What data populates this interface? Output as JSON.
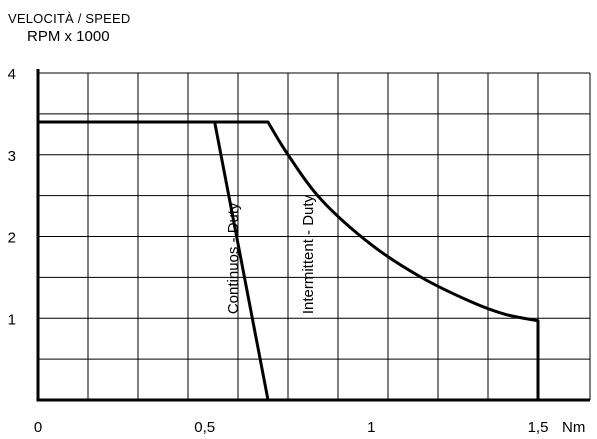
{
  "chart_data": {
    "type": "line",
    "ylabel_line1": "VELOCITÀ / SPEED",
    "ylabel_line2": "RPM x 1000",
    "xunit": "Nm",
    "xlim": [
      0,
      1.5
    ],
    "ylim": [
      0,
      4
    ],
    "x_ticks": [
      {
        "value": 0,
        "label": "0"
      },
      {
        "value": 0.5,
        "label": "0,5"
      },
      {
        "value": 1,
        "label": "1"
      },
      {
        "value": 1.5,
        "label": "1,5"
      }
    ],
    "y_ticks": [
      {
        "value": 0,
        "label": ""
      },
      {
        "value": 1,
        "label": "1"
      },
      {
        "value": 2,
        "label": "2"
      },
      {
        "value": 3,
        "label": "3"
      },
      {
        "value": 4,
        "label": "4"
      }
    ],
    "grid": true,
    "series": [
      {
        "name": "Continuos - Duty",
        "label_at": {
          "x": 0.6,
          "y": 1.05
        },
        "x": [
          0,
          0.53,
          0.69
        ],
        "y": [
          3.4,
          3.4,
          0
        ]
      },
      {
        "name": "Intermittent - Duty",
        "label_at": {
          "x": 0.825,
          "y": 1.05
        },
        "x": [
          0,
          0.69,
          0.75,
          0.85,
          1.0,
          1.15,
          1.3,
          1.4,
          1.5,
          1.5
        ],
        "y": [
          3.4,
          3.4,
          3.0,
          2.45,
          1.9,
          1.5,
          1.2,
          1.05,
          0.97,
          0
        ]
      }
    ]
  }
}
